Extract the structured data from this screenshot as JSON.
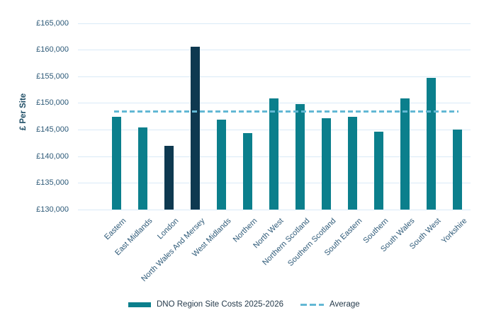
{
  "chart_data": {
    "type": "bar",
    "title": "",
    "xlabel": "",
    "ylabel": "£ Per Site",
    "ylim": [
      130000,
      165000
    ],
    "ytick_step": 5000,
    "ytick_labels": [
      "£130,000",
      "£135,000",
      "£140,000",
      "£145,000",
      "£150,000",
      "£155,000",
      "£160,000",
      "£165,000"
    ],
    "grid": true,
    "legend_position": "bottom",
    "categories": [
      "Eastern",
      "East Midlands",
      "London",
      "North Wales And Mersey",
      "West Midlands",
      "Northern",
      "North West",
      "Northern Scotland",
      "Southern Scotland",
      "South Eastern",
      "Southern",
      "South Wales",
      "South West",
      "Yorkshire"
    ],
    "series": [
      {
        "name": "DNO Region Site Costs 2025-2026",
        "values": [
          147400,
          145400,
          141900,
          160600,
          146900,
          144400,
          150900,
          149800,
          147200,
          147400,
          144600,
          150800,
          154700,
          145000
        ]
      }
    ],
    "highlighted_categories": [
      "London",
      "North Wales And Mersey"
    ],
    "average": {
      "label": "Average",
      "value": 148357
    },
    "legend": [
      {
        "label": "DNO Region Site Costs 2025-2026",
        "swatch": "solid-bar"
      },
      {
        "label": "Average",
        "swatch": "dashed-line"
      }
    ],
    "colors": {
      "bar": "#0b7f8c",
      "bar_highlight": "#0e3950",
      "average_line": "#63b8d4",
      "gridline": "#d9eaf7",
      "axis_text": "#2e5a78",
      "legend_text": "#24394a"
    }
  }
}
